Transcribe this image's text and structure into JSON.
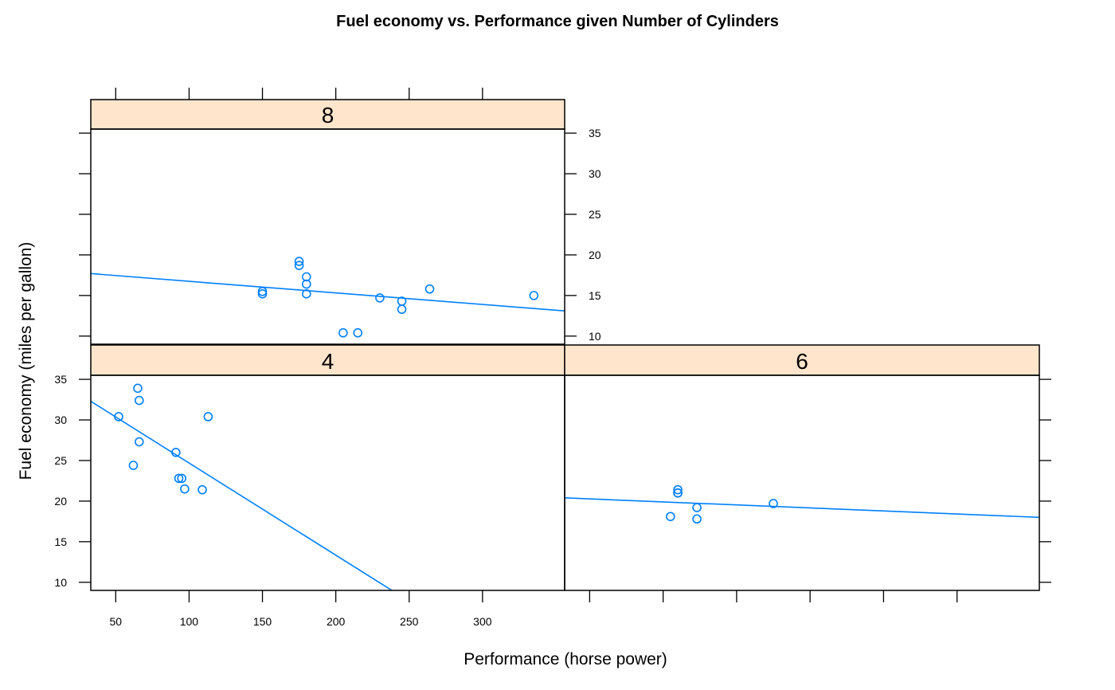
{
  "colors": {
    "points": "#0080FF",
    "fit_line": "#0080FF",
    "strip_fill": "#FFE5CC",
    "frame": "#000000",
    "background": "#FFFFFF"
  },
  "chart_data": {
    "type": "scatter",
    "title": "Fuel economy vs. Performance given Number of Cylinders",
    "xlabel": "Performance (horse power)",
    "ylabel": "Fuel economy (miles per gallon)",
    "xlim": [
      33,
      356
    ],
    "ylim": [
      9,
      35.5
    ],
    "x_ticks": [
      50,
      100,
      150,
      200,
      250,
      300
    ],
    "y_ticks": [
      10,
      15,
      20,
      25,
      30,
      35
    ],
    "grid": false,
    "legend": "none",
    "fit": "linear",
    "panels": [
      {
        "label": "8",
        "points": [
          {
            "x": 175,
            "y": 18.7
          },
          {
            "x": 245,
            "y": 14.3
          },
          {
            "x": 180,
            "y": 16.4
          },
          {
            "x": 180,
            "y": 17.3
          },
          {
            "x": 180,
            "y": 15.2
          },
          {
            "x": 205,
            "y": 10.4
          },
          {
            "x": 215,
            "y": 10.4
          },
          {
            "x": 230,
            "y": 14.7
          },
          {
            "x": 150,
            "y": 15.5
          },
          {
            "x": 150,
            "y": 15.2
          },
          {
            "x": 245,
            "y": 13.3
          },
          {
            "x": 175,
            "y": 19.2
          },
          {
            "x": 264,
            "y": 15.8
          },
          {
            "x": 335,
            "y": 15.0
          }
        ],
        "fit_line": {
          "x": [
            33,
            356
          ],
          "y": [
            17.7,
            13.1
          ]
        }
      },
      {
        "label": "4",
        "points": [
          {
            "x": 93,
            "y": 22.8
          },
          {
            "x": 62,
            "y": 24.4
          },
          {
            "x": 95,
            "y": 22.8
          },
          {
            "x": 66,
            "y": 32.4
          },
          {
            "x": 52,
            "y": 30.4
          },
          {
            "x": 65,
            "y": 33.9
          },
          {
            "x": 97,
            "y": 21.5
          },
          {
            "x": 66,
            "y": 27.3
          },
          {
            "x": 91,
            "y": 26.0
          },
          {
            "x": 113,
            "y": 30.4
          },
          {
            "x": 109,
            "y": 21.4
          }
        ],
        "fit_line": {
          "x": [
            33,
            240
          ],
          "y": [
            32.3,
            8.8
          ]
        }
      },
      {
        "label": "6",
        "points": [
          {
            "x": 110,
            "y": 21.0
          },
          {
            "x": 110,
            "y": 21.0
          },
          {
            "x": 110,
            "y": 21.4
          },
          {
            "x": 105,
            "y": 18.1
          },
          {
            "x": 123,
            "y": 19.2
          },
          {
            "x": 123,
            "y": 17.8
          },
          {
            "x": 175,
            "y": 19.7
          }
        ],
        "fit_line": {
          "x": [
            33,
            356
          ],
          "y": [
            20.4,
            18.0
          ]
        }
      }
    ]
  }
}
